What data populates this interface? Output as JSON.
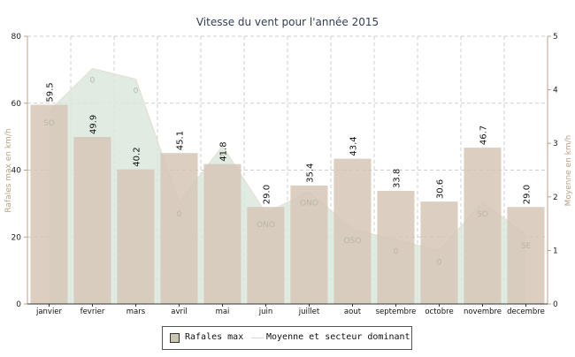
{
  "chart_data": {
    "type": "bar",
    "title": "Vitesse du vent pour l'année 2015",
    "ylabel": "Rafales max en km/h",
    "ylabel_right": "Moyenne en km/h",
    "ylim": [
      0,
      80
    ],
    "ylim_right": [
      0,
      5
    ],
    "yticks": [
      "0",
      "20",
      "40",
      "60",
      "80"
    ],
    "yticks_right": [
      "0",
      "1",
      "2",
      "3",
      "4",
      "5"
    ],
    "categories": [
      "janvier",
      "fevrier",
      "mars",
      "avril",
      "mai",
      "juin",
      "juillet",
      "aout",
      "septembre",
      "octobre",
      "novembre",
      "decembre"
    ],
    "series": [
      {
        "name": "Rafales max",
        "type": "bar",
        "axis": "left",
        "values": [
          59.5,
          49.9,
          40.2,
          45.1,
          41.8,
          29.0,
          35.4,
          43.4,
          33.8,
          30.6,
          46.7,
          29.0
        ],
        "labels": [
          "59.5",
          "49.9",
          "40.2",
          "45.1",
          "41.8",
          "29.0",
          "35.4",
          "43.4",
          "33.8",
          "30.6",
          "46.7",
          "29.0"
        ],
        "color": "#c8c6b0"
      },
      {
        "name": "Moyenne et secteur dominant",
        "type": "area",
        "axis": "right",
        "values": [
          3.6,
          4.4,
          4.2,
          1.9,
          2.95,
          1.7,
          2.1,
          1.4,
          1.2,
          1.0,
          1.9,
          1.3
        ],
        "sectors": [
          "SO",
          "0",
          "0",
          "0",
          "0",
          "ONO",
          "ONO",
          "OSO",
          "0",
          "0",
          "SO",
          "SE"
        ],
        "color": "#dbe9dc"
      }
    ],
    "bar_overlay_color": "#d4c4b4",
    "grid": true,
    "legend": "bottom-center"
  },
  "legend": {
    "bar_label": "Rafales max",
    "line_label": "Moyenne et secteur dominant"
  }
}
